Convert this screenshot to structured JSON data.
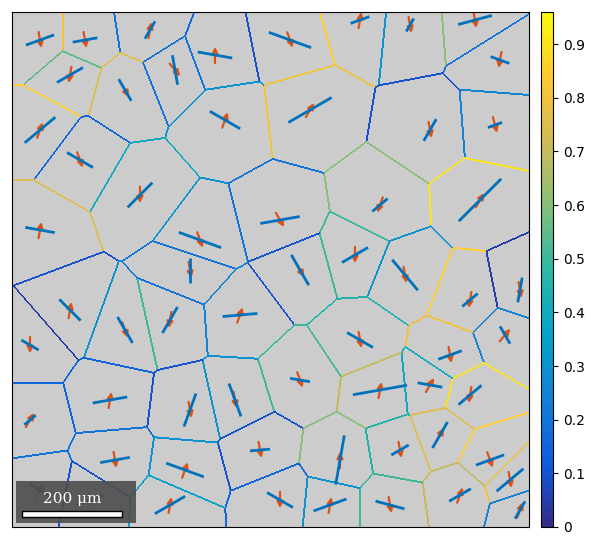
{
  "chart_data": {
    "type": "grain_map",
    "tick_labels": false,
    "xlim": [
      0,
      1034
    ],
    "ylim": [
      1030,
      0
    ],
    "grains": {
      "x": [
        56,
        146,
        276,
        406,
        556,
        696,
        796,
        926,
        976,
        116,
        226,
        326,
        426,
        596,
        836,
        966,
        56,
        136,
        256,
        376,
        536,
        736,
        936,
        56,
        116,
        226,
        316,
        356,
        456,
        576,
        686,
        786,
        916,
        1016,
        696,
        876,
        986,
        36,
        196,
        356,
        446,
        576,
        736,
        836,
        916,
        36,
        206,
        346,
        496,
        656,
        776,
        856,
        956,
        56,
        156,
        316,
        536,
        636,
        756,
        896,
        996,
        1016
      ],
      "y": [
        56,
        56,
        36,
        86,
        56,
        16,
        26,
        16,
        96,
        126,
        156,
        116,
        216,
        196,
        236,
        226,
        236,
        296,
        366,
        456,
        416,
        386,
        376,
        436,
        596,
        636,
        616,
        516,
        606,
        516,
        486,
        526,
        576,
        556,
        656,
        686,
        646,
        666,
        776,
        796,
        776,
        736,
        756,
        746,
        766,
        816,
        896,
        916,
        876,
        896,
        876,
        846,
        896,
        956,
        976,
        986,
        976,
        986,
        986,
        966,
        936,
        996
      ],
      "values": [
        0.25,
        0.8,
        0.2,
        0.15,
        0.1,
        0.85,
        0.3,
        0.6,
        0.2,
        0.55,
        0.75,
        0.2,
        0.3,
        0.8,
        0.1,
        0.25,
        0.85,
        0.15,
        0.4,
        0.3,
        0.2,
        0.6,
        0.9,
        0.75,
        0.1,
        0.3,
        0.5,
        0.2,
        0.25,
        0.1,
        0.5,
        0.3,
        0.85,
        0.05,
        0.45,
        0.8,
        0.25,
        0.05,
        0.15,
        0.1,
        0.3,
        0.5,
        0.7,
        0.4,
        0.9,
        0.15,
        0.2,
        0.3,
        0.1,
        0.6,
        0.45,
        0.75,
        0.85,
        0.2,
        0.1,
        0.35,
        0.15,
        0.3,
        0.5,
        0.7,
        0.8,
        0.25
      ],
      "line_angle": [
        20,
        10,
        60,
        -10,
        160,
        20,
        60,
        15,
        160,
        30,
        120,
        100,
        150,
        30,
        60,
        20,
        40,
        150,
        45,
        160,
        10,
        40,
        45,
        170,
        135,
        120,
        60,
        90,
        5,
        120,
        30,
        130,
        40,
        80,
        150,
        20,
        120,
        150,
        10,
        70,
        110,
        170,
        10,
        170,
        40,
        40,
        10,
        160,
        5,
        80,
        30,
        60,
        20,
        150,
        20,
        30,
        150,
        20,
        165,
        30,
        40,
        60
      ],
      "line_length": [
        60,
        50,
        40,
        70,
        90,
        40,
        30,
        70,
        40,
        60,
        50,
        60,
        70,
        100,
        50,
        30,
        80,
        60,
        70,
        90,
        80,
        40,
        120,
        60,
        60,
        60,
        60,
        50,
        70,
        70,
        60,
        80,
        40,
        50,
        60,
        50,
        40,
        40,
        70,
        70,
        70,
        40,
        110,
        50,
        60,
        30,
        60,
        80,
        40,
        100,
        40,
        60,
        60,
        50,
        60,
        70,
        60,
        70,
        60,
        50,
        70,
        40
      ],
      "arrow_angle": [
        -80,
        -80,
        80,
        90,
        -70,
        80,
        -80,
        -80,
        -100,
        -100,
        -60,
        -50,
        70,
        60,
        -80,
        -75,
        70,
        -70,
        -90,
        -70,
        -60,
        -110,
        60,
        80,
        80,
        -70,
        -100,
        -80,
        70,
        -60,
        -90,
        -80,
        -100,
        -80,
        -80,
        -80,
        50,
        -90,
        80,
        -80,
        -80,
        -70,
        80,
        60,
        -100,
        60,
        -80,
        70,
        -80,
        90,
        -80,
        60,
        -70,
        60,
        -80,
        80,
        -90,
        80,
        -80,
        70,
        -80,
        70
      ]
    },
    "colorbar": {
      "range": [
        0,
        0.96
      ],
      "ticks": [
        0,
        0.1,
        0.2,
        0.3,
        0.4,
        0.5,
        0.6,
        0.7,
        0.8,
        0.9
      ]
    },
    "scale_bar": {
      "length": 200,
      "label": "200 μm"
    }
  }
}
